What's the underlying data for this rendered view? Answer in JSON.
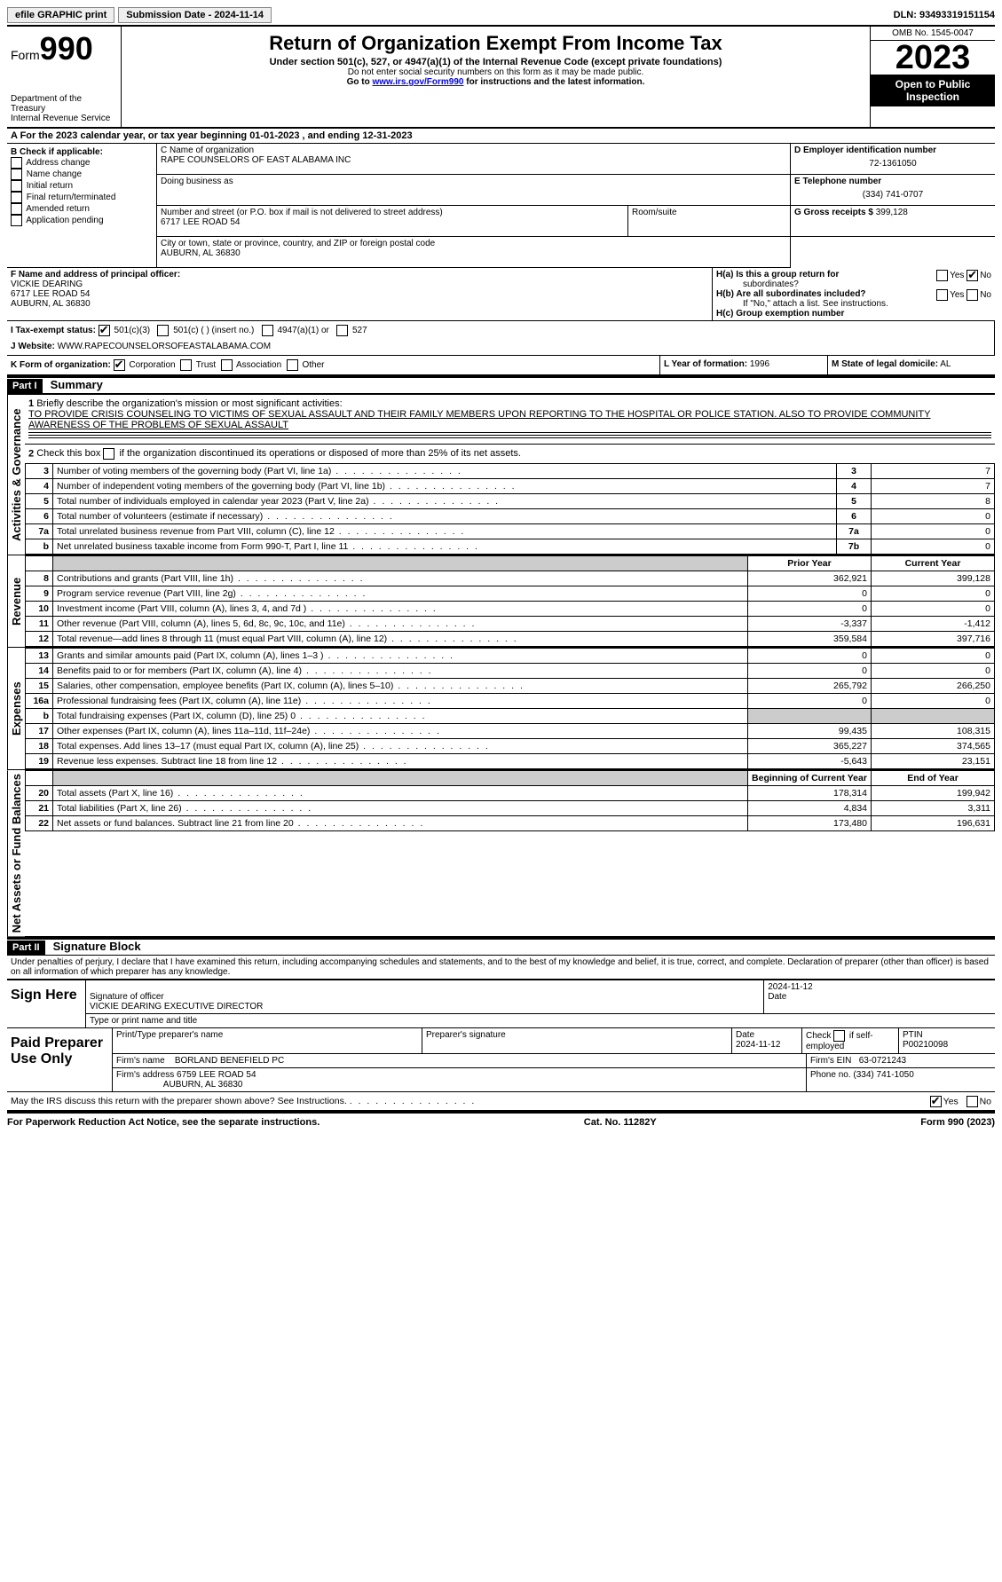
{
  "topbar": {
    "efile": "efile GRAPHIC print",
    "submission_label": "Submission Date - 2024-11-14",
    "dln_label": "DLN: 93493319151154"
  },
  "header": {
    "form_word": "Form",
    "form_num": "990",
    "dept": "Department of the Treasury",
    "irs": "Internal Revenue Service",
    "title": "Return of Organization Exempt From Income Tax",
    "sub": "Under section 501(c), 527, or 4947(a)(1) of the Internal Revenue Code (except private foundations)",
    "warn": "Do not enter social security numbers on this form as it may be made public.",
    "goto_pre": "Go to ",
    "goto_link": "www.irs.gov/Form990",
    "goto_post": " for instructions and the latest information.",
    "omb": "OMB No. 1545-0047",
    "year": "2023",
    "inspection": "Open to Public Inspection"
  },
  "section_a": {
    "text": "A For the 2023 calendar year, or tax year beginning 01-01-2023    , and ending 12-31-2023"
  },
  "section_b": {
    "label": "B Check if applicable:",
    "items": [
      "Address change",
      "Name change",
      "Initial return",
      "Final return/terminated",
      "Amended return",
      "Application pending"
    ]
  },
  "section_c": {
    "name_label": "C Name of organization",
    "name": "RAPE COUNSELORS OF EAST ALABAMA INC",
    "dba_label": "Doing business as",
    "dba": "",
    "street_label": "Number and street (or P.O. box if mail is not delivered to street address)",
    "room_label": "Room/suite",
    "street": "6717 LEE ROAD 54",
    "city_label": "City or town, state or province, country, and ZIP or foreign postal code",
    "city": "AUBURN, AL  36830"
  },
  "section_d": {
    "ein_label": "D Employer identification number",
    "ein": "72-1361050",
    "phone_label": "E Telephone number",
    "phone": "(334) 741-0707",
    "gross_label": "G Gross receipts $",
    "gross": "399,128"
  },
  "section_f": {
    "label": "F Name and address of principal officer:",
    "name": "VICKIE DEARING",
    "street": "6717 LEE ROAD 54",
    "city": "AUBURN, AL  36830"
  },
  "section_h": {
    "ha": "H(a)  Is this a group return for",
    "ha2": "subordinates?",
    "hb": "H(b)  Are all subordinates included?",
    "hb_note": "If \"No,\" attach a list. See instructions.",
    "hc": "H(c)  Group exemption number",
    "yes": "Yes",
    "no": "No"
  },
  "section_i": {
    "label": "I   Tax-exempt status:",
    "opt1": "501(c)(3)",
    "opt2": "501(c) (  ) (insert no.)",
    "opt3": "4947(a)(1) or",
    "opt4": "527"
  },
  "section_j": {
    "label": "J   Website:",
    "value": "WWW.RAPECOUNSELORSOFEASTALABAMA.COM"
  },
  "section_k": {
    "label": "K Form of organization:",
    "corp": "Corporation",
    "trust": "Trust",
    "assoc": "Association",
    "other": "Other"
  },
  "section_l": {
    "label": "L Year of formation:",
    "value": "1996"
  },
  "section_m": {
    "label": "M State of legal domicile:",
    "value": "AL"
  },
  "part1": {
    "header": "Part I",
    "title": "Summary",
    "vtab1": "Activities & Governance",
    "vtab2": "Revenue",
    "vtab3": "Expenses",
    "vtab4": "Net Assets or Fund Balances",
    "line1_label": "Briefly describe the organization's mission or most significant activities:",
    "line1_text": "TO PROVIDE CRISIS COUNSELING TO VICTIMS OF SEXUAL ASSAULT AND THEIR FAMILY MEMBERS UPON REPORTING TO THE HOSPITAL OR POLICE STATION. ALSO TO PROVIDE COMMUNITY AWARENESS OF THE PROBLEMS OF SEXUAL ASSAULT",
    "line2": "Check this box       if the organization discontinued its operations or disposed of more than 25% of its net assets.",
    "lines_gov": [
      {
        "n": "3",
        "d": "Number of voting members of the governing body (Part VI, line 1a)",
        "b": "3",
        "v": "7"
      },
      {
        "n": "4",
        "d": "Number of independent voting members of the governing body (Part VI, line 1b)",
        "b": "4",
        "v": "7"
      },
      {
        "n": "5",
        "d": "Total number of individuals employed in calendar year 2023 (Part V, line 2a)",
        "b": "5",
        "v": "8"
      },
      {
        "n": "6",
        "d": "Total number of volunteers (estimate if necessary)",
        "b": "6",
        "v": "0"
      },
      {
        "n": "7a",
        "d": "Total unrelated business revenue from Part VIII, column (C), line 12",
        "b": "7a",
        "v": "0"
      },
      {
        "n": "b",
        "d": "Net unrelated business taxable income from Form 990-T, Part I, line 11",
        "b": "7b",
        "v": "0"
      }
    ],
    "prior_year": "Prior Year",
    "current_year": "Current Year",
    "lines_rev": [
      {
        "n": "8",
        "d": "Contributions and grants (Part VIII, line 1h)",
        "py": "362,921",
        "cy": "399,128"
      },
      {
        "n": "9",
        "d": "Program service revenue (Part VIII, line 2g)",
        "py": "0",
        "cy": "0"
      },
      {
        "n": "10",
        "d": "Investment income (Part VIII, column (A), lines 3, 4, and 7d )",
        "py": "0",
        "cy": "0"
      },
      {
        "n": "11",
        "d": "Other revenue (Part VIII, column (A), lines 5, 6d, 8c, 9c, 10c, and 11e)",
        "py": "-3,337",
        "cy": "-1,412"
      },
      {
        "n": "12",
        "d": "Total revenue—add lines 8 through 11 (must equal Part VIII, column (A), line 12)",
        "py": "359,584",
        "cy": "397,716"
      }
    ],
    "lines_exp": [
      {
        "n": "13",
        "d": "Grants and similar amounts paid (Part IX, column (A), lines 1–3 )",
        "py": "0",
        "cy": "0"
      },
      {
        "n": "14",
        "d": "Benefits paid to or for members (Part IX, column (A), line 4)",
        "py": "0",
        "cy": "0"
      },
      {
        "n": "15",
        "d": "Salaries, other compensation, employee benefits (Part IX, column (A), lines 5–10)",
        "py": "265,792",
        "cy": "266,250"
      },
      {
        "n": "16a",
        "d": "Professional fundraising fees (Part IX, column (A), line 11e)",
        "py": "0",
        "cy": "0"
      },
      {
        "n": "b",
        "d": "Total fundraising expenses (Part IX, column (D), line 25) 0",
        "py": "SHADED",
        "cy": "SHADED"
      },
      {
        "n": "17",
        "d": "Other expenses (Part IX, column (A), lines 11a–11d, 11f–24e)",
        "py": "99,435",
        "cy": "108,315"
      },
      {
        "n": "18",
        "d": "Total expenses. Add lines 13–17 (must equal Part IX, column (A), line 25)",
        "py": "365,227",
        "cy": "374,565"
      },
      {
        "n": "19",
        "d": "Revenue less expenses. Subtract line 18 from line 12",
        "py": "-5,643",
        "cy": "23,151"
      }
    ],
    "beg_year": "Beginning of Current Year",
    "end_year": "End of Year",
    "lines_net": [
      {
        "n": "20",
        "d": "Total assets (Part X, line 16)",
        "py": "178,314",
        "cy": "199,942"
      },
      {
        "n": "21",
        "d": "Total liabilities (Part X, line 26)",
        "py": "4,834",
        "cy": "3,311"
      },
      {
        "n": "22",
        "d": "Net assets or fund balances. Subtract line 21 from line 20",
        "py": "173,480",
        "cy": "196,631"
      }
    ]
  },
  "part2": {
    "header": "Part II",
    "title": "Signature Block",
    "decl": "Under penalties of perjury, I declare that I have examined this return, including accompanying schedules and statements, and to the best of my knowledge and belief, it is true, correct, and complete. Declaration of preparer (other than officer) is based on all information of which preparer has any knowledge.",
    "sign_here": "Sign Here",
    "sig_officer": "Signature of officer",
    "officer_name": "VICKIE DEARING  EXECUTIVE DIRECTOR",
    "type_name": "Type or print name and title",
    "date_label": "Date",
    "date1": "2024-11-12",
    "paid": "Paid Preparer Use Only",
    "print_name": "Print/Type preparer's name",
    "prep_sig": "Preparer's signature",
    "date2": "2024-11-12",
    "check_self": "Check        if self-employed",
    "ptin_label": "PTIN",
    "ptin": "P00210098",
    "firm_name_label": "Firm's name",
    "firm_name": "BORLAND BENEFIELD PC",
    "firm_ein_label": "Firm's EIN",
    "firm_ein": "63-0721243",
    "firm_addr_label": "Firm's address",
    "firm_addr1": "6759 LEE ROAD 54",
    "firm_addr2": "AUBURN, AL  36830",
    "phone_label": "Phone no.",
    "phone": "(334) 741-1050",
    "discuss": "May the IRS discuss this return with the preparer shown above? See Instructions.",
    "yes": "Yes",
    "no": "No"
  },
  "footer": {
    "left": "For Paperwork Reduction Act Notice, see the separate instructions.",
    "mid": "Cat. No. 11282Y",
    "right": "Form 990 (2023)"
  }
}
